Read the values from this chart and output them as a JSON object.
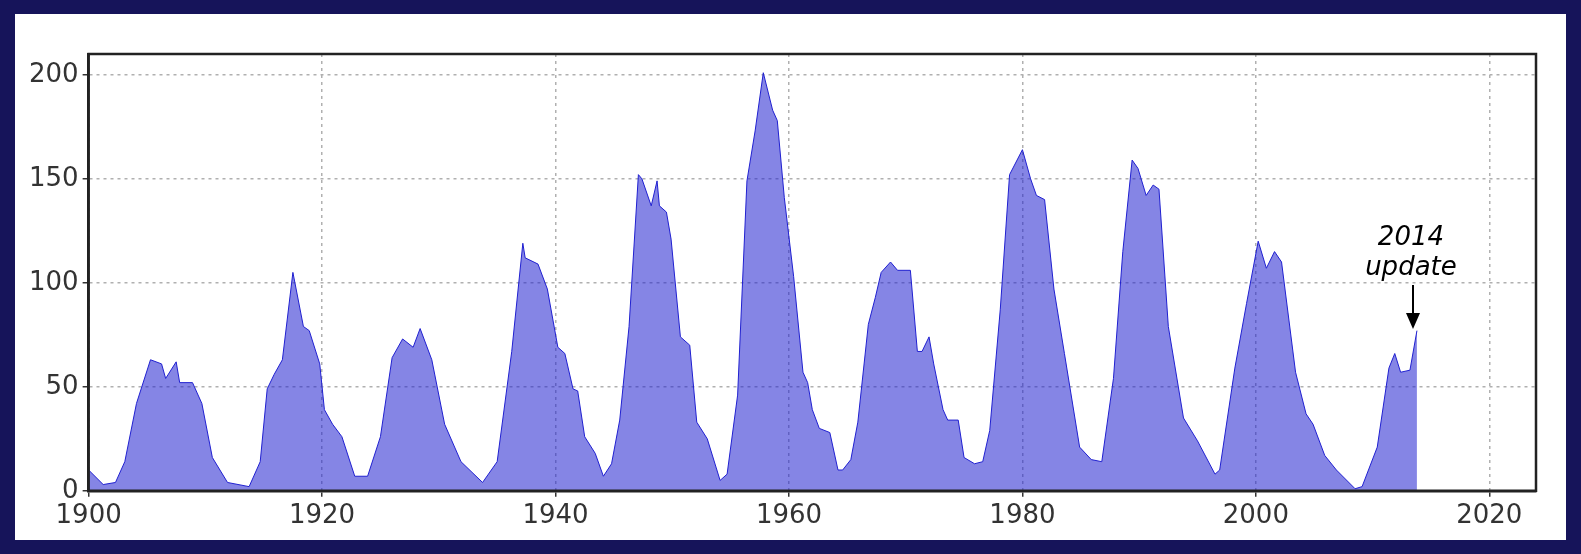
{
  "chart_data": {
    "type": "area",
    "x": [
      1900,
      1901.25,
      1902.3,
      1903.1,
      1904.1,
      1905.3,
      1906.25,
      1906.6,
      1907.5,
      1907.8,
      1908.9,
      1909.7,
      1910.6,
      1911.9,
      1913.75,
      1914.7,
      1915.3,
      1915.9,
      1916.6,
      1917.5,
      1918.4,
      1918.9,
      1919.8,
      1920.2,
      1920.9,
      1921.7,
      1922.8,
      1923.9,
      1925,
      1926,
      1926.9,
      1927.8,
      1928.4,
      1929.4,
      1930.5,
      1931.9,
      1933.75,
      1935,
      1936.25,
      1937.2,
      1937.4,
      1938.5,
      1939.3,
      1940.2,
      1940.8,
      1941.5,
      1941.9,
      1942.5,
      1943.4,
      1944.1,
      1944.8,
      1945.5,
      1946.3,
      1947.1,
      1947.4,
      1948.2,
      1948.7,
      1948.9,
      1949.5,
      1949.9,
      1950.7,
      1951.5,
      1952.1,
      1953,
      1954.1,
      1954.7,
      1955.6,
      1956.4,
      1957.1,
      1957.8,
      1958.6,
      1959,
      1959.6,
      1960.4,
      1961.2,
      1961.6,
      1962,
      1962.6,
      1963.5,
      1964.2,
      1964.6,
      1965.3,
      1965.9,
      1966.8,
      1967.4,
      1967.9,
      1968.7,
      1969.3,
      1970.4,
      1971,
      1971.4,
      1972,
      1972.4,
      1973.2,
      1973.6,
      1974.5,
      1975,
      1975.9,
      1976.6,
      1977.2,
      1978.1,
      1978.9,
      1980,
      1980.7,
      1981.2,
      1981.9,
      1982.7,
      1983.6,
      1984.9,
      1985.9,
      1986.8,
      1987.8,
      1988.6,
      1989.4,
      1989.9,
      1990.6,
      1991.2,
      1991.7,
      1992.5,
      1993.8,
      1995,
      1996.5,
      1996.9,
      1998.2,
      1999.2,
      2000.2,
      2000.9,
      2001.6,
      2002.2,
      2003.4,
      2004.3,
      2004.9,
      2005.9,
      2006.9,
      2008.5,
      2009.1,
      2010.4,
      2011.4,
      2011.9,
      2012.4,
      2013.2,
      2013.8
    ],
    "series": [
      {
        "color": "#2020d0",
        "values": [
          10,
          3,
          4,
          14,
          42,
          63,
          61,
          54,
          62,
          52,
          52,
          42,
          16,
          4,
          2,
          14,
          49,
          56,
          63,
          105,
          79,
          77,
          61,
          39,
          32,
          26,
          7,
          7,
          26,
          64,
          73,
          69,
          78,
          63,
          32,
          14,
          4,
          14,
          67,
          119,
          112,
          109,
          97,
          69,
          66,
          49,
          48,
          26,
          18,
          7,
          13,
          34,
          79,
          152,
          150,
          137,
          149,
          137,
          134,
          121,
          74,
          70,
          33,
          25,
          5,
          8,
          46,
          149,
          173,
          201,
          183,
          178,
          141,
          103,
          57,
          52,
          39,
          30,
          28,
          10,
          10,
          15,
          33,
          80,
          93,
          105,
          110,
          106,
          106,
          67,
          67,
          74,
          61,
          39,
          34,
          34,
          16,
          13,
          14,
          29,
          87,
          152,
          164,
          150,
          142,
          140,
          97,
          66,
          21,
          15,
          14,
          54,
          115,
          159,
          155,
          142,
          147,
          145,
          79,
          35,
          24,
          8,
          10,
          59,
          90,
          120,
          107,
          115,
          110,
          57,
          37,
          32,
          17,
          10,
          1,
          2,
          21,
          59,
          66,
          57,
          58,
          77
        ]
      }
    ],
    "xlim": [
      1900,
      2024
    ],
    "ylim": [
      0,
      210
    ],
    "xticks": [
      1900,
      1920,
      1940,
      1960,
      1980,
      2000,
      2020
    ],
    "yticks": [
      0,
      50,
      100,
      150,
      200
    ],
    "grid": true,
    "legend": false,
    "marker": "none",
    "line_style": "solid",
    "annotations": [
      {
        "text": "2014 update",
        "x": 2013.8,
        "y": 77
      }
    ]
  }
}
